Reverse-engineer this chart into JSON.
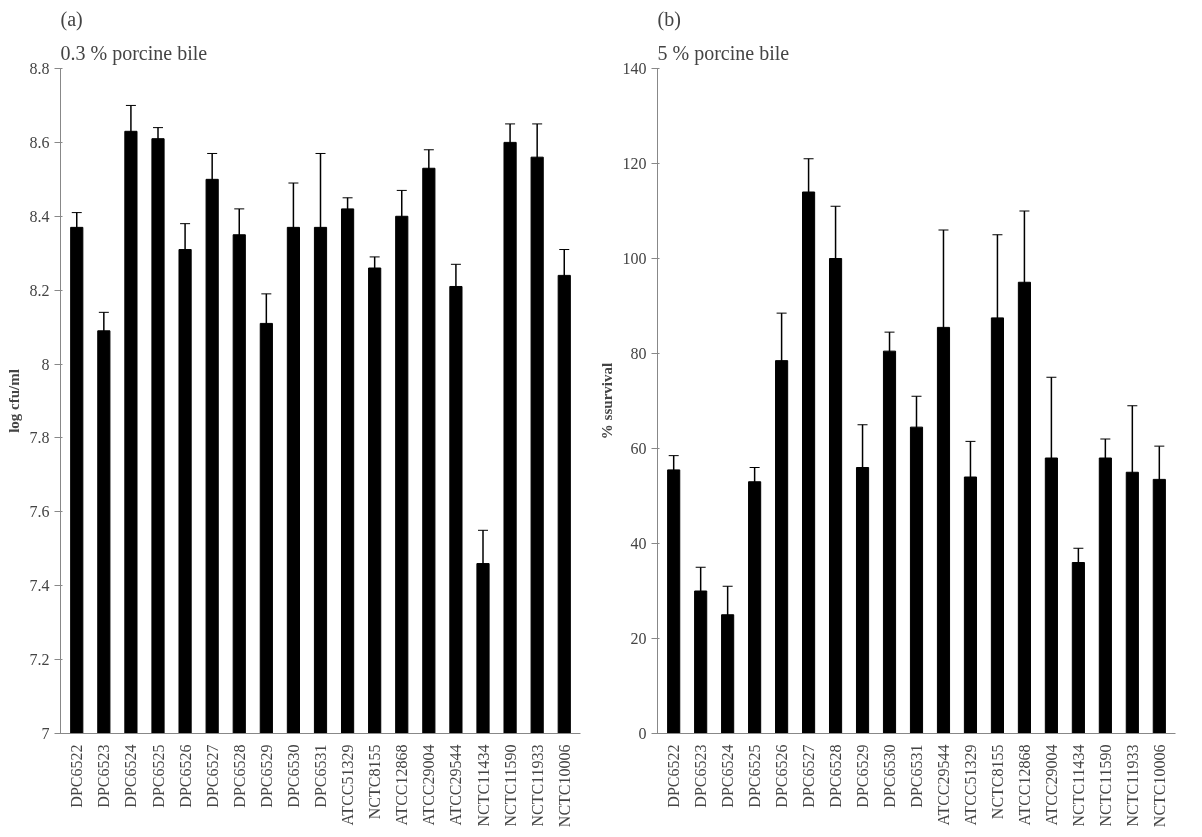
{
  "chart_data": [
    {
      "type": "bar",
      "title": "(a)",
      "subtitle": "0.3 % porcine bile",
      "ylabel": "log cfu/ml",
      "categories": [
        "DPC6522",
        "DPC6523",
        "DPC6524",
        "DPC6525",
        "DPC6526",
        "DPC6527",
        "DPC6528",
        "DPC6529",
        "DPC6530",
        "DPC6531",
        "ATCC51329",
        "NCTC8155",
        "ATCC12868",
        "ATCC29004",
        "ATCC29544",
        "NCTC11434",
        "NCTC11590",
        "NCTC11933",
        "NCTC10006"
      ],
      "series": [
        {
          "color": "#000000",
          "values": [
            8.37,
            8.09,
            8.63,
            8.61,
            8.31,
            8.5,
            8.35,
            8.11,
            8.37,
            8.37,
            8.42,
            8.26,
            8.4,
            8.53,
            8.21,
            7.46,
            8.6,
            8.56,
            8.24
          ],
          "errors": [
            0.04,
            0.05,
            0.07,
            0.03,
            0.07,
            0.07,
            0.07,
            0.08,
            0.12,
            0.2,
            0.03,
            0.03,
            0.07,
            0.05,
            0.06,
            0.09,
            0.05,
            0.09,
            0.07
          ]
        }
      ],
      "ylim": [
        7,
        8.8
      ],
      "yticks": [
        7,
        7.2,
        7.4,
        7.6,
        7.8,
        8,
        8.2,
        8.4,
        8.6,
        8.8
      ],
      "grid": false
    },
    {
      "type": "bar",
      "title": "(b)",
      "subtitle": "5 % porcine bile",
      "ylabel": "% ssurvival",
      "categories": [
        "DPC6522",
        "DPC6523",
        "DPC6524",
        "DPC6525",
        "DPC6526",
        "DPC6527",
        "DPC6528",
        "DPC6529",
        "DPC6530",
        "DPC6531",
        "ATCC29544",
        "ATCC51329",
        "NCTC8155",
        "ATCC12868",
        "ATCC29004",
        "NCTC11434",
        "NCTC11590",
        "NCTC11933",
        "NCTC10006"
      ],
      "series": [
        {
          "color": "#000000",
          "values": [
            55.5,
            30,
            25,
            53,
            78.5,
            114,
            100,
            56,
            80.5,
            64.5,
            85.5,
            54,
            87.5,
            95,
            58,
            36,
            58,
            55,
            53.5
          ],
          "errors": [
            3,
            5,
            6,
            3,
            10,
            7,
            11,
            9,
            4,
            6.5,
            20.5,
            7.5,
            17.5,
            15,
            17,
            3,
            4,
            14,
            7
          ]
        }
      ],
      "ylim": [
        0,
        140
      ],
      "yticks": [
        0,
        20,
        40,
        60,
        80,
        100,
        120,
        140
      ],
      "grid": false
    }
  ]
}
